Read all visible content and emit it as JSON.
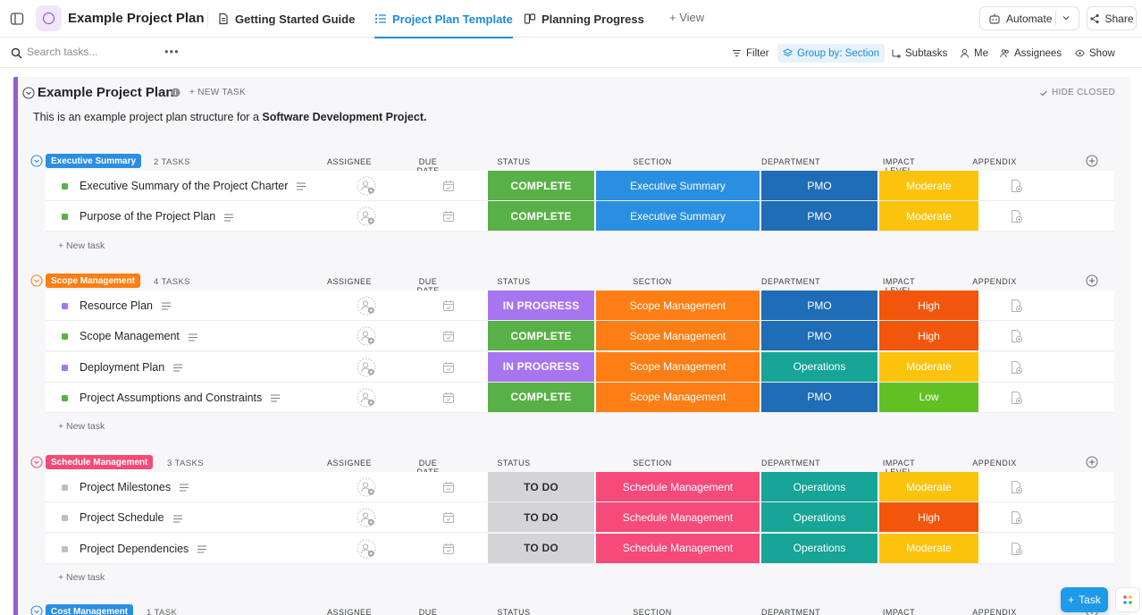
{
  "header": {
    "project_title": "Example Project Plan",
    "tabs": [
      {
        "label": "Getting Started Guide"
      },
      {
        "label": "Project Plan Template"
      },
      {
        "label": "Planning Progress"
      }
    ],
    "add_view_label": "View",
    "automate_label": "Automate",
    "share_label": "Share"
  },
  "toolbar": {
    "search_placeholder": "Search tasks...",
    "filter_label": "Filter",
    "group_label": "Group by: Section",
    "subtasks_label": "Subtasks",
    "me_label": "Me",
    "assignees_label": "Assignees",
    "show_label": "Show"
  },
  "list": {
    "title": "Example Project Plan",
    "new_task_label": "+ NEW TASK",
    "hide_closed_label": "HIDE CLOSED",
    "description_prefix": "This is an example project plan structure for a ",
    "description_bold": "Software Development Project."
  },
  "columns": {
    "assignee": "ASSIGNEE",
    "due_date": "DUE DATE",
    "status": "STATUS",
    "section": "SECTION",
    "department": "DEPARTMENT",
    "impact_level": "IMPACT LEVEL",
    "appendix": "APPENDIX"
  },
  "colors": {
    "complete": "#58b146",
    "in_progress": "#a875f0",
    "to_do": "#d4d4d7",
    "section_exec": "#2a8fe0",
    "section_scope": "#fd7e14",
    "section_schedule": "#f54a7a",
    "dept_pmo": "#1f6cb7",
    "dept_operations": "#16a596",
    "impact_moderate": "#fcc30c",
    "impact_high": "#f2560c",
    "impact_low": "#62c025"
  },
  "groups": [
    {
      "name": "Executive Summary",
      "count": "2 TASKS",
      "new_task_label": "+ New task",
      "tasks": [
        {
          "name": "Executive Summary of the Project Charter",
          "status": "COMPLETE",
          "section": "Executive Summary",
          "department": "PMO",
          "impact": "Moderate"
        },
        {
          "name": "Purpose of the Project Plan",
          "status": "COMPLETE",
          "section": "Executive Summary",
          "department": "PMO",
          "impact": "Moderate"
        }
      ]
    },
    {
      "name": "Scope Management",
      "count": "4 TASKS",
      "new_task_label": "+ New task",
      "tasks": [
        {
          "name": "Resource Plan",
          "status": "IN PROGRESS",
          "section": "Scope Management",
          "department": "PMO",
          "impact": "High"
        },
        {
          "name": "Scope Management",
          "status": "COMPLETE",
          "section": "Scope Management",
          "department": "PMO",
          "impact": "High"
        },
        {
          "name": "Deployment Plan",
          "status": "IN PROGRESS",
          "section": "Scope Management",
          "department": "Operations",
          "impact": "Moderate"
        },
        {
          "name": "Project Assumptions and Constraints",
          "status": "COMPLETE",
          "section": "Scope Management",
          "department": "PMO",
          "impact": "Low"
        }
      ]
    },
    {
      "name": "Schedule Management",
      "count": "3 TASKS",
      "new_task_label": "+ New task",
      "tasks": [
        {
          "name": "Project Milestones",
          "status": "TO DO",
          "section": "Schedule Management",
          "department": "Operations",
          "impact": "Moderate"
        },
        {
          "name": "Project Schedule",
          "status": "TO DO",
          "section": "Schedule Management",
          "department": "Operations",
          "impact": "High"
        },
        {
          "name": "Project Dependencies",
          "status": "TO DO",
          "section": "Schedule Management",
          "department": "Operations",
          "impact": "Moderate"
        }
      ]
    },
    {
      "name": "Cost Management",
      "count": "1 TASK"
    }
  ],
  "fab": {
    "label": "Task"
  }
}
